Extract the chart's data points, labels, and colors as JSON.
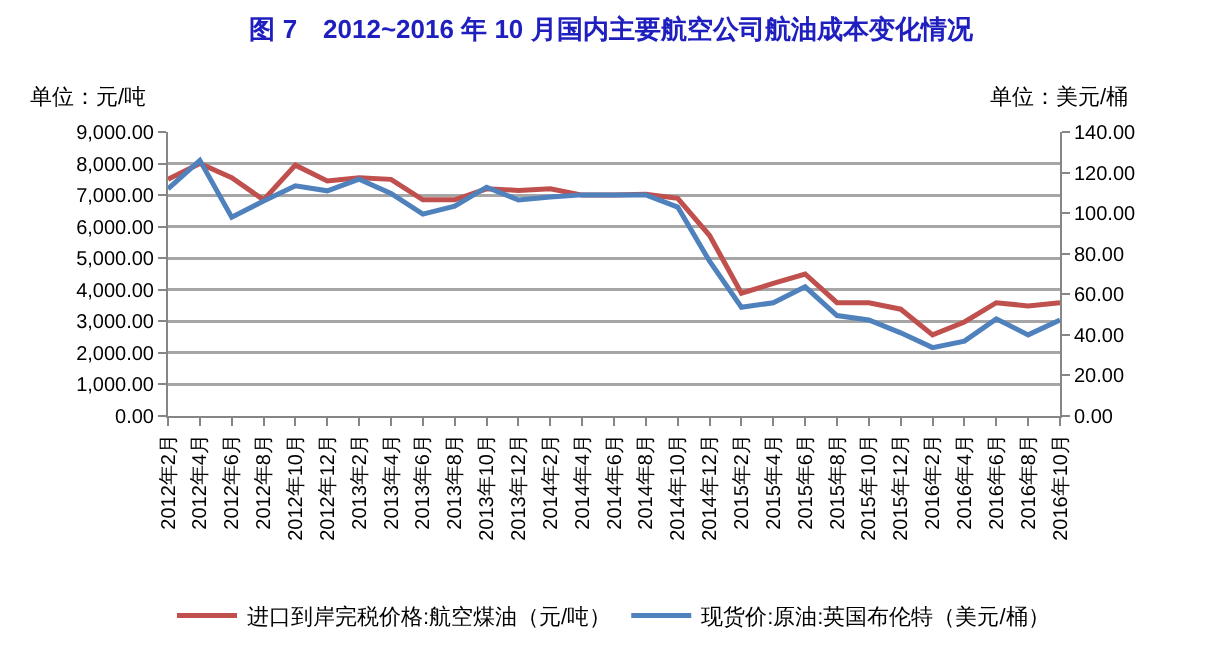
{
  "chart_data": {
    "type": "line",
    "title": "图 7　2012~2016 年 10 月国内主要航空公司航油成本变化情况",
    "ylabel": "单位：元/吨",
    "y2label": "单位：美元/桶",
    "categories": [
      "2012年2月",
      "2012年4月",
      "2012年6月",
      "2012年8月",
      "2012年10月",
      "2012年12月",
      "2013年2月",
      "2013年4月",
      "2013年6月",
      "2013年8月",
      "2013年10月",
      "2013年12月",
      "2014年2月",
      "2014年4月",
      "2014年6月",
      "2014年8月",
      "2014年10月",
      "2014年12月",
      "2015年2月",
      "2015年4月",
      "2015年6月",
      "2015年8月",
      "2015年10月",
      "2015年12月",
      "2016年2月",
      "2016年4月",
      "2016年6月",
      "2016年8月",
      "2016年10月"
    ],
    "series": [
      {
        "name": "进口到岸完税价格:航空煤油（元/吨）",
        "color": "#c0504d",
        "values": [
          7500,
          8000,
          7550,
          6850,
          7950,
          7450,
          7550,
          7500,
          6850,
          6850,
          7200,
          7150,
          7200,
          7000,
          7000,
          7030,
          6900,
          5720,
          3890,
          4200,
          4500,
          3590,
          3590,
          3385,
          2570,
          2980,
          3590,
          3490,
          3590
        ]
      },
      {
        "name": "现货价:原油:英国布伦特（美元/桶）",
        "color": "#4f81bd",
        "axis": "y2",
        "values": [
          112,
          126,
          98,
          106,
          113.5,
          111,
          116.7,
          109.7,
          99.5,
          103.4,
          112.8,
          106.5,
          108,
          109,
          109,
          109,
          103,
          76.3,
          53.6,
          55.8,
          63.7,
          49.5,
          47.3,
          41,
          33.7,
          36.9,
          47.9,
          40,
          47.3
        ]
      }
    ],
    "ylim": [
      0,
      9000
    ],
    "yticks": [
      {
        "value": 0,
        "label": "0.00"
      },
      {
        "value": 1000,
        "label": "1,000.00"
      },
      {
        "value": 2000,
        "label": "2,000.00"
      },
      {
        "value": 3000,
        "label": "3,000.00"
      },
      {
        "value": 4000,
        "label": "4,000.00"
      },
      {
        "value": 5000,
        "label": "5,000.00"
      },
      {
        "value": 6000,
        "label": "6,000.00"
      },
      {
        "value": 7000,
        "label": "7,000.00"
      },
      {
        "value": 8000,
        "label": "8,000.00"
      },
      {
        "value": 9000,
        "label": "9,000.00"
      }
    ],
    "y2lim": [
      0,
      140
    ],
    "y2ticks": [
      {
        "value": 0,
        "label": "0.00"
      },
      {
        "value": 20,
        "label": "20.00"
      },
      {
        "value": 40,
        "label": "40.00"
      },
      {
        "value": 60,
        "label": "60.00"
      },
      {
        "value": 80,
        "label": "80.00"
      },
      {
        "value": 100,
        "label": "100.00"
      },
      {
        "value": 120,
        "label": "120.00"
      },
      {
        "value": 140,
        "label": "140.00"
      }
    ],
    "grid": "y",
    "legend": "bottom",
    "marker": "none",
    "line_style": "solid"
  }
}
